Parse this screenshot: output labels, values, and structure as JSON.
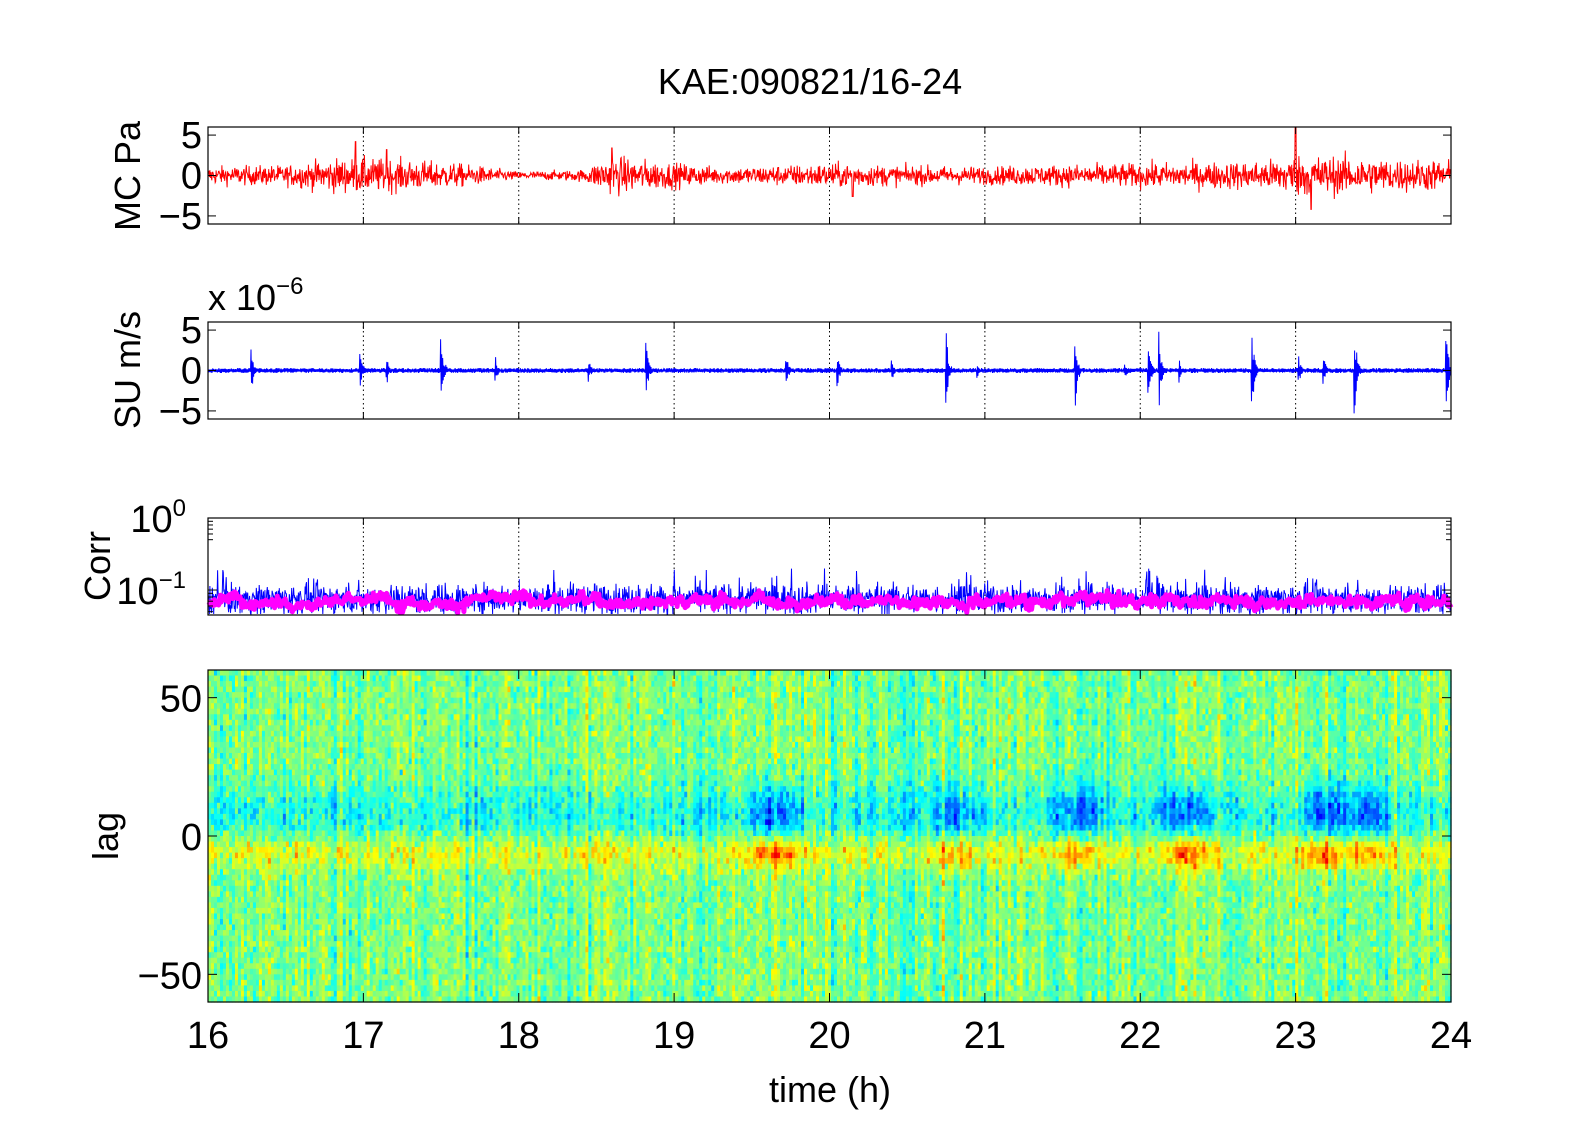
{
  "figure_title": "KAE:090821/16-24",
  "chart_data": [
    {
      "type": "line",
      "panel": "MC",
      "ylabel": "MC Pa",
      "xlim": [
        16,
        24
      ],
      "ylim": [
        -6,
        6
      ],
      "yticks": [
        -5,
        0,
        5
      ],
      "ytick_labels": [
        "−5",
        "0",
        "5"
      ],
      "grid": true,
      "series": [
        {
          "color": "#ff0000"
        }
      ],
      "noise_envelope": {
        "x": [
          16,
          16.5,
          16.8,
          17,
          17.3,
          17.6,
          18,
          18.4,
          18.6,
          18.9,
          19.3,
          19.7,
          20,
          20.5,
          21,
          21.5,
          22,
          22.5,
          22.8,
          23,
          23.3,
          23.6,
          24
        ],
        "amp": [
          1.4,
          1.6,
          2.6,
          2.7,
          2.4,
          1.9,
          0.6,
          0.9,
          3.0,
          2.2,
          1.3,
          1.6,
          1.9,
          1.5,
          1.4,
          1.7,
          1.9,
          2.1,
          2.3,
          3.2,
          3.0,
          2.6,
          2.4
        ]
      },
      "spikes": [
        [
          16.95,
          4.2
        ],
        [
          17.15,
          3.2
        ],
        [
          18.6,
          3.4
        ],
        [
          23.0,
          6.0
        ],
        [
          23.1,
          -4.2
        ],
        [
          20.15,
          -2.6
        ]
      ]
    },
    {
      "type": "line",
      "panel": "SU",
      "ylabel": "SU m/s",
      "yscale_note": "× 10⁻⁶",
      "multiplier_base": "x 10",
      "multiplier_exp": "−6",
      "xlim": [
        16,
        24
      ],
      "ylim": [
        -6,
        6
      ],
      "yticks": [
        -5,
        0,
        5
      ],
      "ytick_labels": [
        "−5",
        "0",
        "5"
      ],
      "grid": true,
      "series": [
        {
          "color": "#0000ff"
        }
      ],
      "baseline_amp": 0.3,
      "bursts": [
        [
          16.28,
          2.8
        ],
        [
          16.98,
          2.6
        ],
        [
          17.15,
          2.0
        ],
        [
          17.5,
          5.5
        ],
        [
          17.85,
          1.8
        ],
        [
          18.45,
          1.6
        ],
        [
          18.82,
          3.8
        ],
        [
          19.72,
          3.0
        ],
        [
          20.05,
          2.6
        ],
        [
          20.4,
          1.6
        ],
        [
          20.75,
          5.5
        ],
        [
          20.95,
          1.2
        ],
        [
          21.58,
          5.6
        ],
        [
          21.9,
          1.4
        ],
        [
          22.05,
          4.6
        ],
        [
          22.12,
          5.2
        ],
        [
          22.25,
          1.5
        ],
        [
          22.72,
          5.0
        ],
        [
          23.02,
          1.8
        ],
        [
          23.18,
          2.0
        ],
        [
          23.38,
          5.6
        ],
        [
          23.97,
          5.5
        ]
      ]
    },
    {
      "type": "line",
      "panel": "Corr",
      "ylabel": "Corr",
      "yscale": "log",
      "xlim": [
        16,
        24
      ],
      "ylim": [
        0.045,
        1.0
      ],
      "ytick_labels": [
        {
          "base": "10",
          "exp": "0",
          "value": 1.0
        },
        {
          "base": "10",
          "exp": "−1",
          "value": 0.1
        }
      ],
      "grid": true,
      "series": [
        {
          "role": "raw",
          "color": "#0000ff",
          "typical": 0.075,
          "peak": 0.2
        },
        {
          "role": "smoothed",
          "color": "#ff00ff",
          "typical": 0.072
        }
      ]
    },
    {
      "type": "heatmap",
      "panel": "lag",
      "ylabel": "lag",
      "xlabel": "time (h)",
      "xlim": [
        16,
        24
      ],
      "ylim": [
        -60,
        60
      ],
      "xticks": [
        16,
        17,
        18,
        19,
        20,
        21,
        22,
        23,
        24
      ],
      "xtick_labels": [
        "16",
        "17",
        "18",
        "19",
        "20",
        "21",
        "22",
        "23",
        "24"
      ],
      "yticks": [
        -50,
        0,
        50
      ],
      "ytick_labels": [
        "−50",
        "0",
        "50"
      ],
      "colormap": "jet",
      "negative_band": {
        "lag_center": 8,
        "lag_width": 10
      },
      "positive_band": {
        "lag_center": -6,
        "lag_width": 6
      },
      "strong_events": [
        [
          19.65,
          1.0
        ],
        [
          20.8,
          0.8
        ],
        [
          21.6,
          0.9
        ],
        [
          22.3,
          1.0
        ],
        [
          23.2,
          1.0
        ],
        [
          23.45,
          0.9
        ]
      ]
    }
  ]
}
